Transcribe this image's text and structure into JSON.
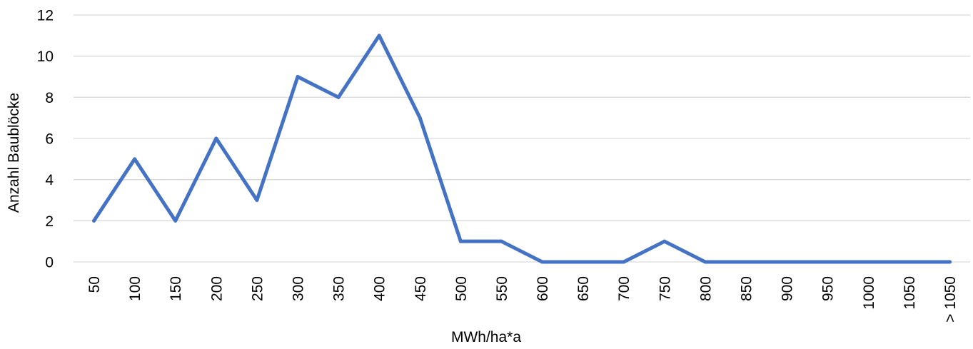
{
  "chart_data": {
    "type": "line",
    "title": "",
    "xlabel": "MWh/ha*a",
    "ylabel": "Anzahl Baublöcke",
    "categories": [
      "50",
      "100",
      "150",
      "200",
      "250",
      "300",
      "350",
      "400",
      "450",
      "500",
      "550",
      "600",
      "650",
      "700",
      "750",
      "800",
      "850",
      "900",
      "950",
      "1000",
      "1050",
      "> 1050"
    ],
    "series": [
      {
        "values": [
          2,
          5,
          2,
          6,
          3,
          9,
          8,
          11,
          7,
          1,
          1,
          0,
          0,
          0,
          1,
          0,
          0,
          0,
          0,
          0,
          0,
          0
        ]
      }
    ],
    "ylim": [
      0,
      12
    ],
    "yticks": [
      0,
      2,
      4,
      6,
      8,
      10,
      12
    ],
    "grid": true,
    "legend": "none",
    "colors": {
      "series": "#4472c4",
      "grid": "#d9d9d9",
      "text": "#000000"
    }
  }
}
